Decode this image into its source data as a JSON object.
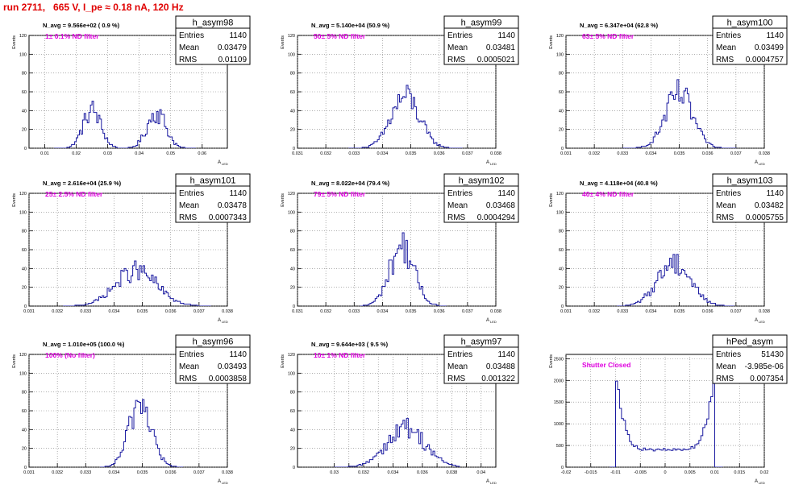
{
  "page_title": "run 2711,   665 V, I_pe ≈ 0.18 nA, 120 Hz",
  "colors": {
    "hist_line": "#1a1aa0",
    "label_magenta": "#e000e0",
    "title_red": "#e00000",
    "grid": "#808080"
  },
  "axis_labels": {
    "ylabel": "Events",
    "xlabel": "A",
    "xlabel_sub": "LED"
  },
  "stats_labels": [
    "Entries",
    "Mean",
    "RMS"
  ],
  "chart_data": [
    {
      "type": "histogram",
      "name": "h_asym98",
      "navg": "N_avg = 9.566e+02 ( 0.9 %)",
      "filter_label": "1± 0.1% ND filter",
      "stats": {
        "entries": "1140",
        "mean": "0.03479",
        "rms": "0.01109"
      },
      "xlim": [
        0.005,
        0.068
      ],
      "ylim": [
        0,
        120
      ],
      "xticks": [
        0.01,
        0.02,
        0.03,
        0.04,
        0.05,
        0.06
      ],
      "xtick_labels": [
        "0.01",
        "0.02",
        "0.03",
        "0.04",
        "0.05",
        "0.06"
      ],
      "yticks": [
        0,
        20,
        40,
        60,
        80,
        100,
        120
      ],
      "ytick_labels": [
        "0",
        "20",
        "40",
        "60",
        "80",
        "100",
        "120"
      ],
      "peaks": [
        {
          "mean": 0.025,
          "sigma": 0.0028,
          "count": 570
        },
        {
          "mean": 0.0455,
          "sigma": 0.003,
          "count": 570
        }
      ],
      "bin_width": 0.0005,
      "xrange": [
        0.013,
        0.058
      ]
    },
    {
      "type": "histogram",
      "name": "h_asym99",
      "navg": "N_avg = 5.140e+04 (50.9 %)",
      "filter_label": "50± 5% ND filter",
      "stats": {
        "entries": "1140",
        "mean": "0.03481",
        "rms": "0.0005021"
      },
      "xlim": [
        0.031,
        0.038
      ],
      "ylim": [
        0,
        120
      ],
      "xticks": [
        0.031,
        0.032,
        0.033,
        0.034,
        0.035,
        0.036,
        0.037,
        0.038
      ],
      "xtick_labels": [
        "0.031",
        "0.032",
        "0.033",
        "0.034",
        "0.035",
        "0.036",
        "0.037",
        "0.038"
      ],
      "yticks": [
        0,
        20,
        40,
        60,
        80,
        100,
        120
      ],
      "ytick_labels": [
        "0",
        "20",
        "40",
        "60",
        "80",
        "100",
        "120"
      ],
      "peaks": [
        {
          "mean": 0.03481,
          "sigma": 0.0005,
          "count": 1140
        }
      ],
      "bin_width": 6e-05,
      "xrange": [
        0.0328,
        0.0368
      ]
    },
    {
      "type": "histogram",
      "name": "h_asym100",
      "navg": "N_avg = 6.347e+04 (62.8 %)",
      "filter_label": "63± 5% ND filter",
      "stats": {
        "entries": "1140",
        "mean": "0.03499",
        "rms": "0.0004757"
      },
      "xlim": [
        0.031,
        0.038
      ],
      "ylim": [
        0,
        120
      ],
      "xticks": [
        0.031,
        0.032,
        0.033,
        0.034,
        0.035,
        0.036,
        0.037,
        0.038
      ],
      "xtick_labels": [
        "0.031",
        "0.032",
        "0.033",
        "0.034",
        "0.035",
        "0.036",
        "0.037",
        "0.038"
      ],
      "yticks": [
        0,
        20,
        40,
        60,
        80,
        100,
        120
      ],
      "ytick_labels": [
        "0",
        "20",
        "40",
        "60",
        "80",
        "100",
        "120"
      ],
      "peaks": [
        {
          "mean": 0.03499,
          "sigma": 0.00048,
          "count": 1140
        }
      ],
      "bin_width": 6e-05,
      "xrange": [
        0.033,
        0.037
      ]
    },
    {
      "type": "histogram",
      "name": "h_asym101",
      "navg": "N_avg = 2.616e+04 (25.9 %)",
      "filter_label": "25± 2.5% ND filter",
      "stats": {
        "entries": "1140",
        "mean": "0.03478",
        "rms": "0.0007343"
      },
      "xlim": [
        0.031,
        0.038
      ],
      "ylim": [
        0,
        120
      ],
      "xticks": [
        0.031,
        0.032,
        0.033,
        0.034,
        0.035,
        0.036,
        0.037,
        0.038
      ],
      "xtick_labels": [
        "0.031",
        "0.032",
        "0.033",
        "0.034",
        "0.035",
        "0.036",
        "0.037",
        "0.038"
      ],
      "yticks": [
        0,
        20,
        40,
        60,
        80,
        100,
        120
      ],
      "ytick_labels": [
        "0",
        "20",
        "40",
        "60",
        "80",
        "100",
        "120"
      ],
      "peaks": [
        {
          "mean": 0.03478,
          "sigma": 0.00073,
          "count": 1140
        }
      ],
      "bin_width": 6e-05,
      "xrange": [
        0.0322,
        0.0374
      ]
    },
    {
      "type": "histogram",
      "name": "h_asym102",
      "navg": "N_avg = 8.022e+04 (79.4 %)",
      "filter_label": "79± 5% ND filter",
      "stats": {
        "entries": "1140",
        "mean": "0.03468",
        "rms": "0.0004294"
      },
      "xlim": [
        0.031,
        0.038
      ],
      "ylim": [
        0,
        120
      ],
      "xticks": [
        0.031,
        0.032,
        0.033,
        0.034,
        0.035,
        0.036,
        0.037,
        0.038
      ],
      "xtick_labels": [
        "0.031",
        "0.032",
        "0.033",
        "0.034",
        "0.035",
        "0.036",
        "0.037",
        "0.038"
      ],
      "yticks": [
        0,
        20,
        40,
        60,
        80,
        100,
        120
      ],
      "ytick_labels": [
        "0",
        "20",
        "40",
        "60",
        "80",
        "100",
        "120"
      ],
      "peaks": [
        {
          "mean": 0.03468,
          "sigma": 0.00043,
          "count": 1140
        }
      ],
      "bin_width": 6e-05,
      "xrange": [
        0.0332,
        0.0362
      ]
    },
    {
      "type": "histogram",
      "name": "h_asym103",
      "navg": "N_avg = 4.118e+04 (40.8 %)",
      "filter_label": "40± 4% ND filter",
      "stats": {
        "entries": "1140",
        "mean": "0.03482",
        "rms": "0.0005755"
      },
      "xlim": [
        0.031,
        0.038
      ],
      "ylim": [
        0,
        120
      ],
      "xticks": [
        0.031,
        0.032,
        0.033,
        0.034,
        0.035,
        0.036,
        0.037,
        0.038
      ],
      "xtick_labels": [
        "0.031",
        "0.032",
        "0.033",
        "0.034",
        "0.035",
        "0.036",
        "0.037",
        "0.038"
      ],
      "yticks": [
        0,
        20,
        40,
        60,
        80,
        100,
        120
      ],
      "ytick_labels": [
        "0",
        "20",
        "40",
        "60",
        "80",
        "100",
        "120"
      ],
      "peaks": [
        {
          "mean": 0.03482,
          "sigma": 0.00058,
          "count": 1140
        }
      ],
      "bin_width": 6e-05,
      "xrange": [
        0.0328,
        0.0369
      ]
    },
    {
      "type": "histogram",
      "name": "h_asym96",
      "navg": "N_avg = 1.010e+05 (100.0 %)",
      "filter_label": "100% (No filter)",
      "stats": {
        "entries": "1140",
        "mean": "0.03493",
        "rms": "0.0003858"
      },
      "xlim": [
        0.031,
        0.038
      ],
      "ylim": [
        0,
        120
      ],
      "xticks": [
        0.031,
        0.032,
        0.033,
        0.034,
        0.035,
        0.036,
        0.037,
        0.038
      ],
      "xtick_labels": [
        "0.031",
        "0.032",
        "0.033",
        "0.034",
        "0.035",
        "0.036",
        "0.037",
        "0.038"
      ],
      "yticks": [
        0,
        20,
        40,
        60,
        80,
        100,
        120
      ],
      "ytick_labels": [
        "0",
        "20",
        "40",
        "60",
        "80",
        "100",
        "120"
      ],
      "peaks": [
        {
          "mean": 0.03493,
          "sigma": 0.00039,
          "count": 1140
        }
      ],
      "bin_width": 6e-05,
      "xrange": [
        0.0335,
        0.0364
      ]
    },
    {
      "type": "histogram",
      "name": "h_asym97",
      "navg": "N_avg = 9.644e+03 ( 9.5 %)",
      "filter_label": "10± 1% ND filter",
      "stats": {
        "entries": "1140",
        "mean": "0.03488",
        "rms": "0.001322"
      },
      "xlim": [
        0.0275,
        0.041
      ],
      "ylim": [
        0,
        120
      ],
      "xticks": [
        0.03,
        0.031,
        0.032,
        0.033,
        0.034,
        0.035,
        0.036,
        0.037,
        0.038,
        0.039,
        0.04
      ],
      "xtick_labels": [
        "0.03",
        "",
        "0.032",
        "",
        "0.034",
        "",
        "0.036",
        "",
        "0.038",
        "",
        "0.04"
      ],
      "yticks": [
        0,
        20,
        40,
        60,
        80,
        100,
        120
      ],
      "ytick_labels": [
        "0",
        "20",
        "40",
        "60",
        "80",
        "100",
        "120"
      ],
      "peaks": [
        {
          "mean": 0.03488,
          "sigma": 0.00132,
          "count": 1140
        }
      ],
      "bin_width": 0.00012,
      "xrange": [
        0.03,
        0.0385
      ]
    },
    {
      "type": "histogram",
      "name": "hPed_asym",
      "navg": "",
      "filter_label": "Shutter Closed",
      "stats": {
        "entries": "51430",
        "mean": "-3.985e-06",
        "rms": "0.007354"
      },
      "xlim": [
        -0.02,
        0.02
      ],
      "ylim": [
        0,
        2600
      ],
      "xticks": [
        -0.02,
        -0.015,
        -0.01,
        -0.005,
        0,
        0.005,
        0.01,
        0.015,
        0.02
      ],
      "xtick_labels": [
        "-0.02",
        "-0.015",
        "-0.01",
        "-0.005",
        "0",
        "0.005",
        "0.01",
        "0.015",
        "0.02"
      ],
      "yticks": [
        0,
        500,
        1000,
        1500,
        2000,
        2500
      ],
      "ytick_labels": [
        "0",
        "500",
        "1000",
        "1500",
        "2000",
        "2500"
      ],
      "pedestal": {
        "edge": 0.0101,
        "floor": 400,
        "peak": 2500
      },
      "bin_width": 0.0004,
      "xrange": [
        -0.0112,
        0.0112
      ]
    }
  ]
}
